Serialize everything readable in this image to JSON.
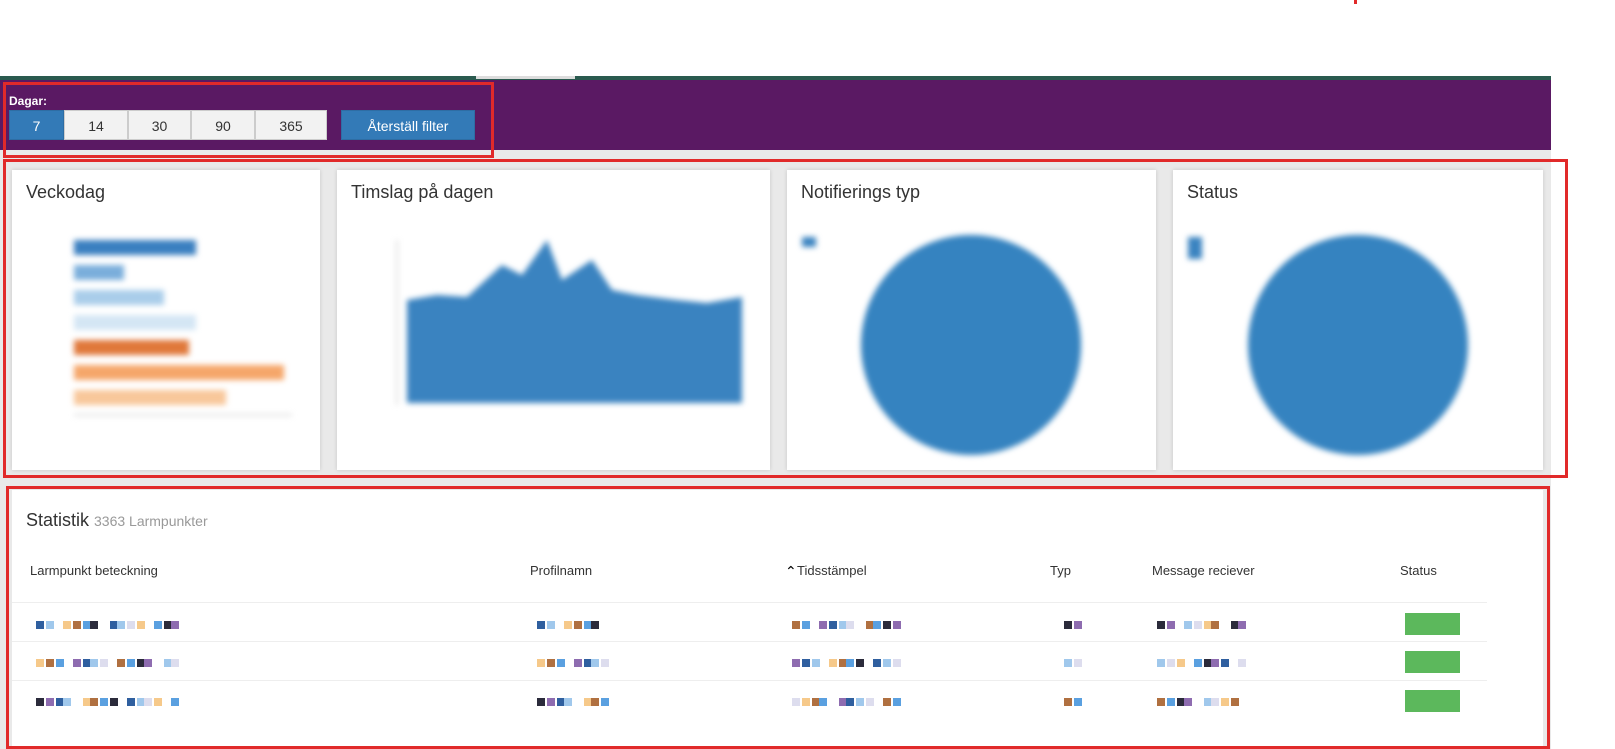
{
  "filter": {
    "label": "Dagar:",
    "days": [
      "7",
      "14",
      "30",
      "90",
      "365"
    ],
    "reset": "Återställ filter"
  },
  "panels": [
    "Veckodag",
    "Timslag på dagen",
    "Notifierings typ",
    "Status"
  ],
  "statistics": {
    "title": "Statistik",
    "subtitle": "3363 Larmpunkter",
    "headers": [
      "Larmpunkt beteckning",
      "Profilnamn",
      "Tidsstämpel",
      "Typ",
      "Message reciever",
      "Status"
    ]
  }
}
